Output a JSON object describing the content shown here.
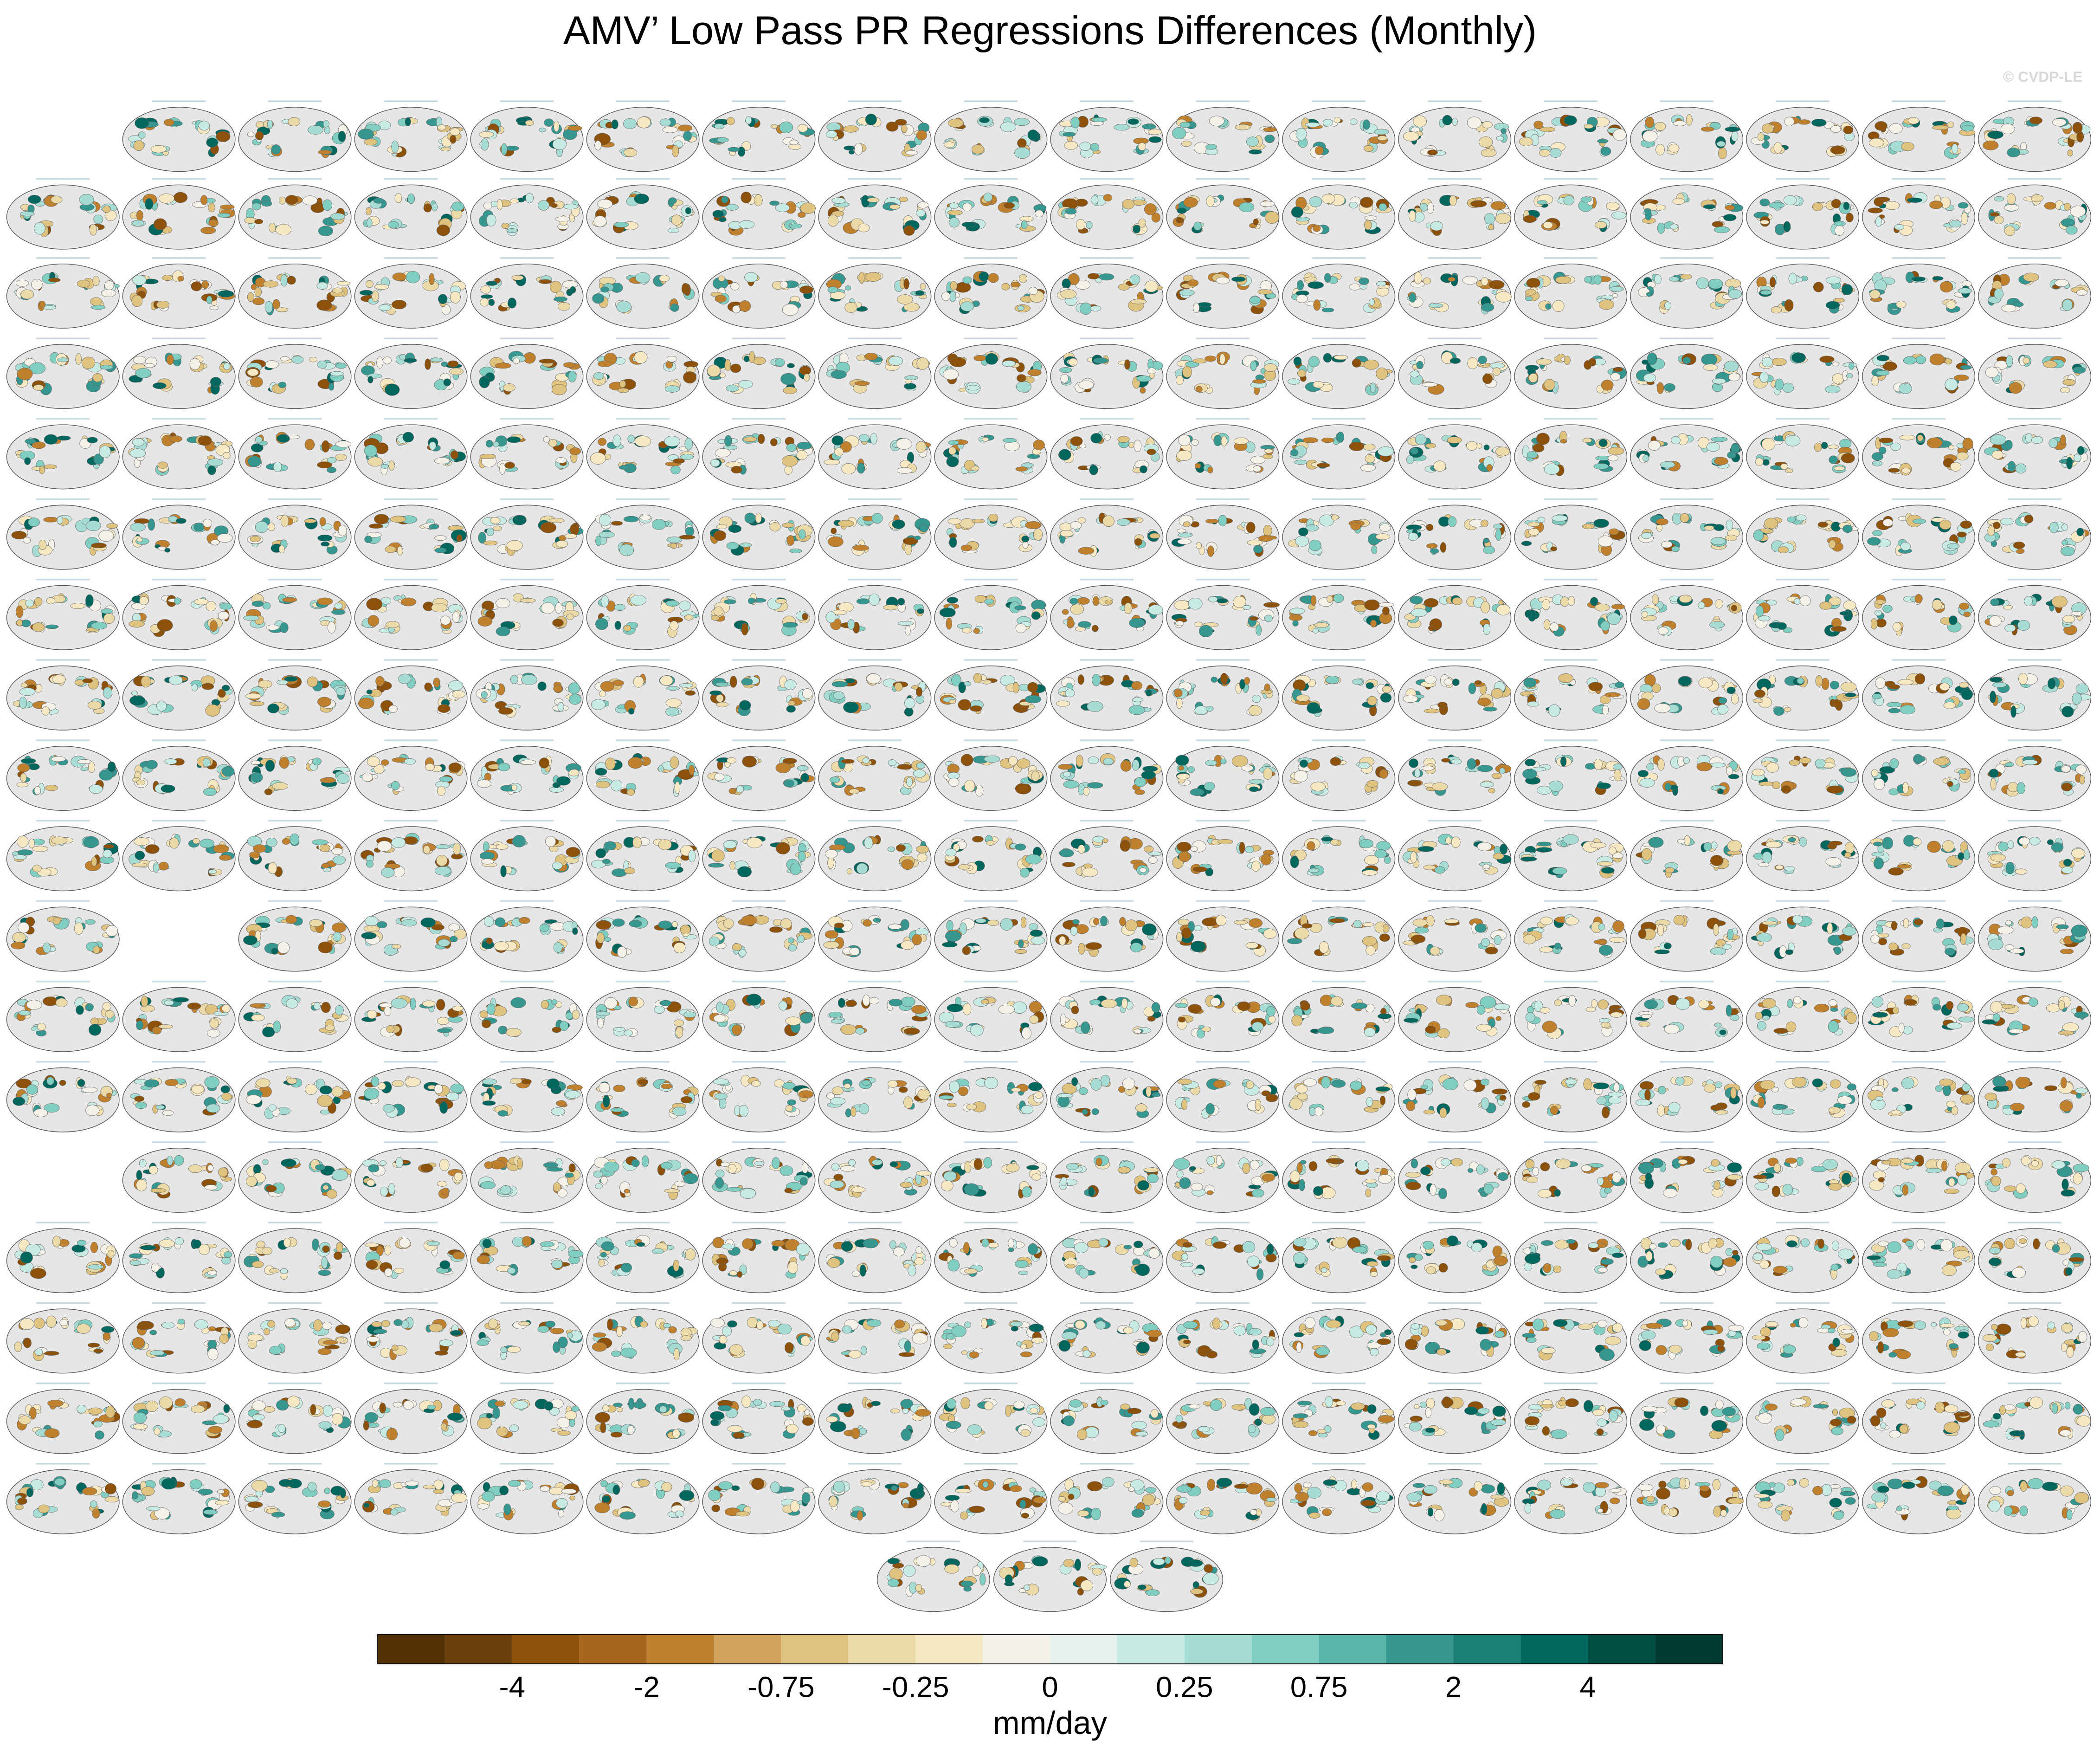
{
  "chart_data": {
    "type": "colorbar",
    "title": "AMV’ Low Pass PR Regressions Differences (Monthly)",
    "watermark": "© CVDP-LE",
    "colorbar_label": "mm/day",
    "colors": [
      "#543005",
      "#6b3e0a",
      "#8c510a",
      "#a6661b",
      "#bf812d",
      "#d2a35c",
      "#dfc27d",
      "#ecd9a8",
      "#f6e8c3",
      "#f5f1e8",
      "#e8f2f0",
      "#c7eae5",
      "#a6dcd3",
      "#80cdc1",
      "#5ab4a8",
      "#35978f",
      "#1a7f74",
      "#01665e",
      "#004f45",
      "#003c30"
    ],
    "ticks": [
      -4,
      -2,
      {
        "value": -0.75,
        "label": "-0.75"
      },
      {
        "value": -0.25,
        "label": "-0.25"
      },
      0,
      0.25,
      0.75,
      2,
      4
    ]
  }
}
